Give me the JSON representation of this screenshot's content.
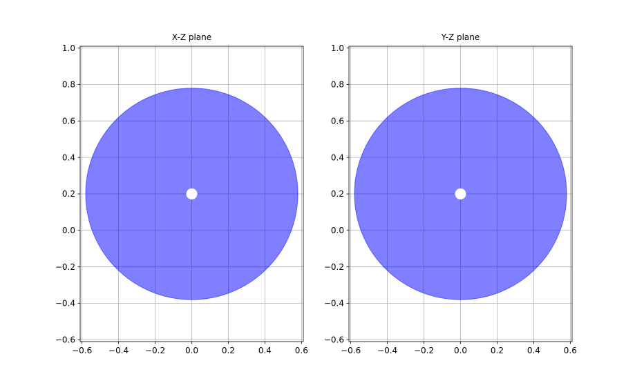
{
  "chart_data": [
    {
      "type": "scatter",
      "title": "X-Z plane",
      "xlabel": "",
      "ylabel": "",
      "xlim": [
        -0.61,
        0.61
      ],
      "ylim": [
        -0.61,
        1.01
      ],
      "xticks": [
        "−0.6",
        "−0.4",
        "−0.2",
        "0.0",
        "0.2",
        "0.4",
        "0.6"
      ],
      "xtick_values": [
        -0.6,
        -0.4,
        -0.2,
        0.0,
        0.2,
        0.4,
        0.6
      ],
      "yticks": [
        "−0.6",
        "−0.4",
        "−0.2",
        "0.0",
        "0.2",
        "0.4",
        "0.6",
        "0.8",
        "1.0"
      ],
      "ytick_values": [
        -0.6,
        -0.4,
        -0.2,
        0.0,
        0.2,
        0.4,
        0.6,
        0.8,
        1.0
      ],
      "grid": true,
      "shapes": [
        {
          "kind": "disk",
          "center": [
            0.0,
            0.2
          ],
          "radius": 0.58,
          "color": "#0000ff",
          "alpha": 0.5
        },
        {
          "kind": "marker",
          "center": [
            0.0,
            0.2
          ],
          "color": "#ffffff"
        }
      ]
    },
    {
      "type": "scatter",
      "title": "Y-Z plane",
      "xlabel": "",
      "ylabel": "",
      "xlim": [
        -0.61,
        0.61
      ],
      "ylim": [
        -0.61,
        1.01
      ],
      "xticks": [
        "−0.6",
        "−0.4",
        "−0.2",
        "0.0",
        "0.2",
        "0.4",
        "0.6"
      ],
      "xtick_values": [
        -0.6,
        -0.4,
        -0.2,
        0.0,
        0.2,
        0.4,
        0.6
      ],
      "yticks": [
        "−0.6",
        "−0.4",
        "−0.2",
        "0.0",
        "0.2",
        "0.4",
        "0.6",
        "0.8",
        "1.0"
      ],
      "ytick_values": [
        -0.6,
        -0.4,
        -0.2,
        0.0,
        0.2,
        0.4,
        0.6,
        0.8,
        1.0
      ],
      "grid": true,
      "shapes": [
        {
          "kind": "disk",
          "center": [
            0.0,
            0.2
          ],
          "radius": 0.58,
          "color": "#0000ff",
          "alpha": 0.5
        },
        {
          "kind": "marker",
          "center": [
            0.0,
            0.2
          ],
          "color": "#ffffff"
        }
      ]
    }
  ]
}
